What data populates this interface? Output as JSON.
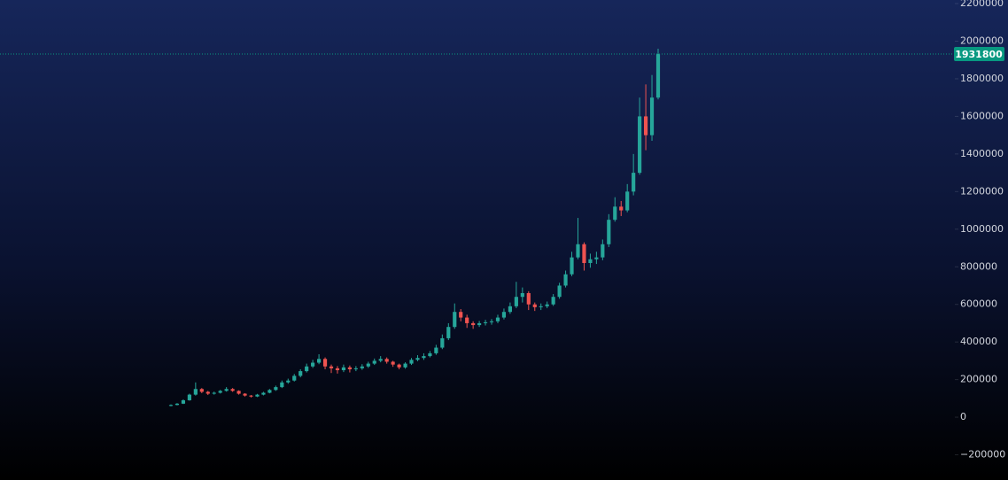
{
  "chart_data": {
    "type": "candlestick",
    "ylim": [
      -334000,
      2219000
    ],
    "yticks": [
      {
        "value": -200000,
        "label": "−200000"
      },
      0,
      200000,
      400000,
      600000,
      800000,
      1000000,
      1200000,
      1400000,
      1600000,
      1800000,
      2000000,
      2200000
    ],
    "up_color": "#26a69a",
    "down_color": "#ef5350",
    "last_price": 1931800,
    "last_price_color": "#089981",
    "open": [
      60000,
      65000,
      72000,
      90000,
      120000,
      150000,
      135000,
      125000,
      130000,
      140000,
      150000,
      140000,
      125000,
      115000,
      110000,
      120000,
      130000,
      145000,
      160000,
      185000,
      195000,
      220000,
      245000,
      270000,
      290000,
      310000,
      270000,
      260000,
      250000,
      265000,
      255000,
      260000,
      270000,
      285000,
      300000,
      310000,
      295000,
      280000,
      265000,
      285000,
      305000,
      315000,
      325000,
      340000,
      370000,
      420000,
      480000,
      560000,
      530000,
      500000,
      490000,
      500000,
      505000,
      510000,
      530000,
      560000,
      590000,
      640000,
      660000,
      600000,
      585000,
      590000,
      600000,
      640000,
      700000,
      760000,
      850000,
      920000,
      820000,
      840000,
      850000,
      920000,
      1050000,
      1120000,
      1100000,
      1200000,
      1300000,
      1600000,
      1500000,
      1700000
    ],
    "high": [
      68000,
      75000,
      95000,
      125000,
      185000,
      155000,
      140000,
      136000,
      145000,
      160000,
      155000,
      143000,
      128000,
      118000,
      124000,
      135000,
      150000,
      168000,
      195000,
      205000,
      230000,
      255000,
      285000,
      305000,
      335000,
      318000,
      280000,
      272000,
      280000,
      275000,
      272000,
      282000,
      295000,
      312000,
      325000,
      318000,
      300000,
      285000,
      292000,
      315000,
      330000,
      340000,
      352000,
      385000,
      440000,
      500000,
      605000,
      575000,
      545000,
      510000,
      512000,
      518000,
      522000,
      545000,
      578000,
      610000,
      720000,
      690000,
      670000,
      610000,
      605000,
      615000,
      655000,
      715000,
      780000,
      880000,
      1060000,
      930000,
      870000,
      880000,
      945000,
      1080000,
      1170000,
      1150000,
      1240000,
      1400000,
      1700000,
      1770000,
      1820000,
      1960000
    ],
    "low": [
      58000,
      63000,
      70000,
      88000,
      115000,
      128000,
      118000,
      120000,
      126000,
      136000,
      135000,
      120000,
      110000,
      105000,
      107000,
      116000,
      127000,
      140000,
      155000,
      178000,
      190000,
      212000,
      238000,
      262000,
      282000,
      255000,
      235000,
      232000,
      240000,
      238000,
      245000,
      252000,
      262000,
      278000,
      292000,
      285000,
      268000,
      255000,
      258000,
      278000,
      298000,
      305000,
      318000,
      332000,
      362000,
      410000,
      470000,
      510000,
      475000,
      470000,
      480000,
      488000,
      492000,
      500000,
      520000,
      550000,
      580000,
      610000,
      570000,
      565000,
      570000,
      580000,
      592000,
      630000,
      690000,
      750000,
      840000,
      780000,
      795000,
      815000,
      835000,
      905000,
      1040000,
      1070000,
      1090000,
      1180000,
      1290000,
      1420000,
      1470000,
      1690000
    ],
    "close": [
      65000,
      72000,
      90000,
      120000,
      150000,
      135000,
      125000,
      130000,
      140000,
      150000,
      140000,
      125000,
      115000,
      110000,
      120000,
      130000,
      145000,
      160000,
      185000,
      195000,
      220000,
      245000,
      270000,
      290000,
      310000,
      270000,
      260000,
      250000,
      265000,
      255000,
      260000,
      270000,
      285000,
      300000,
      310000,
      295000,
      280000,
      265000,
      285000,
      305000,
      315000,
      325000,
      340000,
      370000,
      420000,
      480000,
      560000,
      530000,
      500000,
      490000,
      500000,
      505000,
      510000,
      530000,
      560000,
      590000,
      640000,
      660000,
      600000,
      585000,
      590000,
      600000,
      640000,
      700000,
      760000,
      850000,
      920000,
      820000,
      840000,
      850000,
      920000,
      1050000,
      1120000,
      1100000,
      1200000,
      1300000,
      1600000,
      1500000,
      1700000,
      1931800
    ]
  }
}
